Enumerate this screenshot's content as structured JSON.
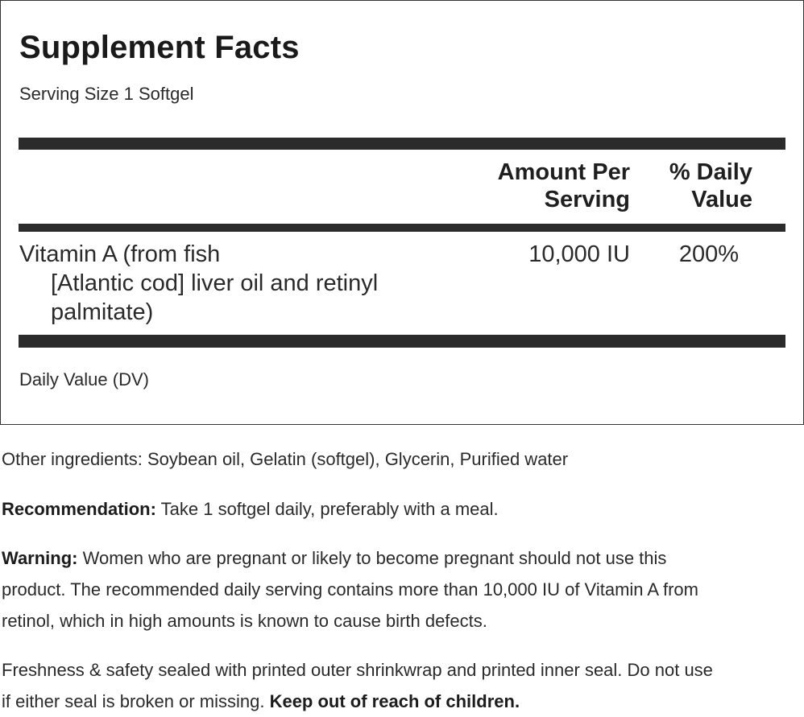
{
  "facts": {
    "title": "Supplement Facts",
    "serving_size": "Serving Size 1 Softgel",
    "columns": {
      "amount_line1": "Amount Per",
      "amount_line2": "Serving",
      "dv_line1": "% Daily",
      "dv_line2": "Value"
    },
    "nutrients": [
      {
        "name_line1": "Vitamin A (from fish",
        "name_line2": "[Atlantic cod] liver oil and retinyl",
        "name_line3": "palmitate)",
        "amount": "10,000 IU",
        "dv": "200%"
      }
    ],
    "footnote": "Daily Value (DV)"
  },
  "other_ingredients": {
    "text": "Other ingredients: Soybean oil, Gelatin (softgel), Glycerin, Purified water"
  },
  "recommendation": {
    "label": "Recommendation:",
    "text": " Take 1 softgel daily, preferably with a meal."
  },
  "warning": {
    "label": "Warning:",
    "line1": " Women who are pregnant or likely to become pregnant should not use this",
    "line2": "product. The recommended daily serving contains more than 10,000 IU of Vitamin A from",
    "line3": "retinol, which in high amounts is known to cause birth defects."
  },
  "freshness": {
    "line1": "Freshness & safety sealed with printed outer shrinkwrap and printed inner seal. Do not use",
    "line2_text": "if either seal is broken or missing. ",
    "line2_bold": "Keep out of reach of children."
  }
}
